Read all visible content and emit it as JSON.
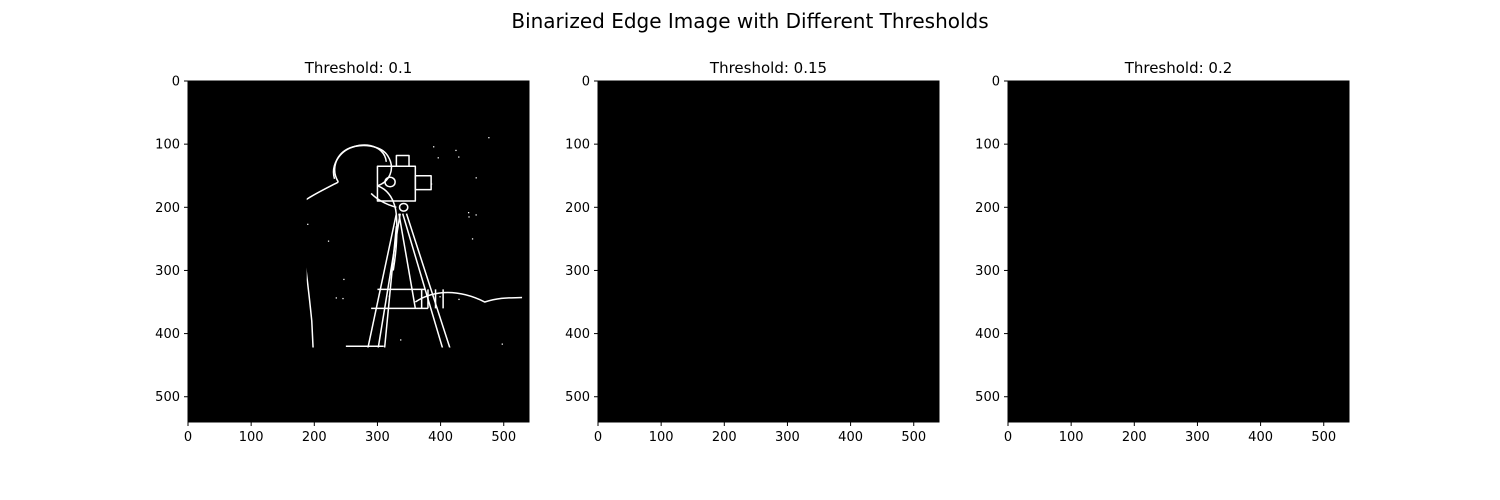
{
  "figure": {
    "title": "Binarized Edge Image with Different Thresholds"
  },
  "chart_data": [
    {
      "type": "image",
      "title": "Threshold: 0.1",
      "threshold": 0.1,
      "xlim": [
        0,
        540
      ],
      "ylim": [
        540,
        0
      ],
      "xticks": [
        0,
        100,
        200,
        300,
        400,
        500
      ],
      "yticks": [
        0,
        100,
        200,
        300,
        400,
        500
      ],
      "colormap": "binary (black background, white edges)",
      "edge_density": "high (noisy grass texture at bottom)"
    },
    {
      "type": "image",
      "title": "Threshold: 0.15",
      "threshold": 0.15,
      "xlim": [
        0,
        540
      ],
      "ylim": [
        540,
        0
      ],
      "xticks": [
        0,
        100,
        200,
        300,
        400,
        500
      ],
      "yticks": [
        0,
        100,
        200,
        300,
        400,
        500
      ],
      "colormap": "binary (black background, white edges)",
      "edge_density": "medium"
    },
    {
      "type": "image",
      "title": "Threshold: 0.2",
      "threshold": 0.2,
      "xlim": [
        0,
        540
      ],
      "ylim": [
        540,
        0
      ],
      "xticks": [
        0,
        100,
        200,
        300,
        400,
        500
      ],
      "yticks": [
        0,
        100,
        200,
        300,
        400,
        500
      ],
      "colormap": "binary (black background, white edges)",
      "edge_density": "low"
    }
  ],
  "colors": {
    "background": "#000000",
    "edge": "#ffffff",
    "axis": "#000000"
  }
}
